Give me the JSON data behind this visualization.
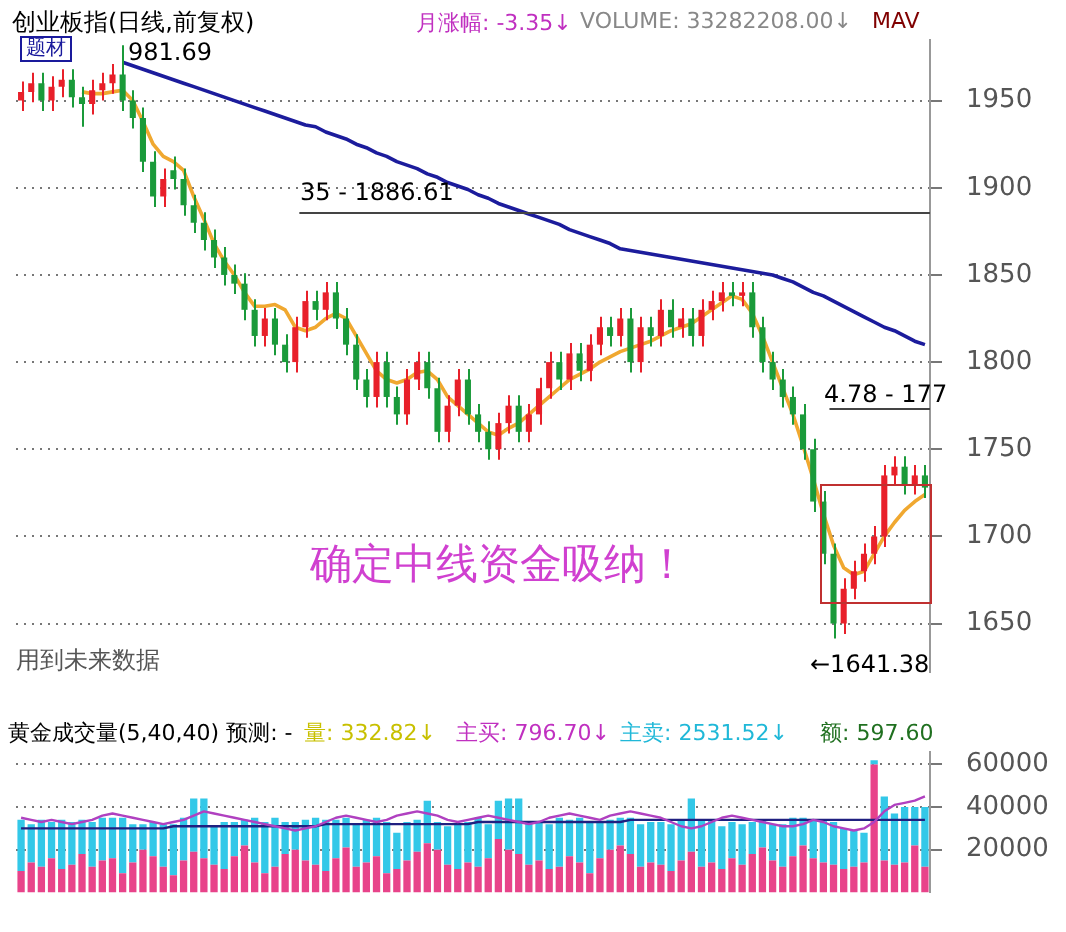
{
  "chart_data": [
    {
      "type": "candlestick",
      "title": "创业板指(日线,前复权)",
      "annotations": [
        "月涨幅: -3.35↓",
        "VOLUME: 33282208.00↓",
        "MAV",
        "题材",
        "981.69",
        "确定中线资金吸纳！",
        "用到未来数据",
        "←1641.38",
        "35 - 1886.61",
        "4.78 - 177"
      ],
      "categories": [
        null,
        null,
        null,
        null,
        null,
        null,
        null,
        null,
        null,
        null,
        null,
        null,
        null,
        null,
        null,
        null,
        null,
        null,
        null,
        null,
        null,
        null,
        null,
        null,
        null,
        null,
        null,
        null,
        null,
        null,
        null,
        null,
        null,
        null,
        null,
        null,
        null,
        null,
        null,
        null,
        null,
        null,
        null,
        null,
        null,
        null,
        null,
        null,
        null,
        null,
        null,
        null,
        null,
        null,
        null,
        null,
        null,
        null,
        null,
        null,
        null,
        null,
        null,
        null,
        null,
        null,
        null,
        null,
        null,
        null,
        null,
        null,
        null,
        null,
        null,
        null,
        null,
        null,
        null,
        null,
        null,
        null,
        null,
        null,
        null,
        null,
        null,
        null,
        null,
        null
      ],
      "ohlc": [
        [
          1950,
          1961,
          1944,
          1955
        ],
        [
          1955,
          1966,
          1949,
          1960
        ],
        [
          1960,
          1966,
          1944,
          1950
        ],
        [
          1950,
          1964,
          1944,
          1958
        ],
        [
          1958,
          1968,
          1952,
          1962
        ],
        [
          1962,
          1968,
          1946,
          1952
        ],
        [
          1952,
          1958,
          1935,
          1948
        ],
        [
          1948,
          1962,
          1942,
          1956
        ],
        [
          1956,
          1966,
          1950,
          1960
        ],
        [
          1960,
          1971,
          1954,
          1965
        ],
        [
          1965,
          1981.69,
          1944,
          1950
        ],
        [
          1950,
          1956,
          1934,
          1940
        ],
        [
          1940,
          1946,
          1909,
          1915
        ],
        [
          1915,
          1921,
          1889,
          1895
        ],
        [
          1895,
          1911,
          1889,
          1905
        ],
        [
          1910,
          1918,
          1899,
          1905
        ],
        [
          1905,
          1911,
          1884,
          1890
        ],
        [
          1890,
          1896,
          1874,
          1880
        ],
        [
          1880,
          1886,
          1864,
          1870
        ],
        [
          1870,
          1876,
          1854,
          1860
        ],
        [
          1860,
          1866,
          1844,
          1850
        ],
        [
          1850,
          1856,
          1839,
          1845
        ],
        [
          1845,
          1851,
          1824,
          1830
        ],
        [
          1830,
          1836,
          1809,
          1815
        ],
        [
          1815,
          1831,
          1809,
          1825
        ],
        [
          1825,
          1831,
          1804,
          1810
        ],
        [
          1810,
          1816,
          1794,
          1800
        ],
        [
          1800,
          1826,
          1794,
          1820
        ],
        [
          1820,
          1841,
          1814,
          1835
        ],
        [
          1835,
          1841,
          1824,
          1830
        ],
        [
          1830,
          1846,
          1824,
          1840
        ],
        [
          1840,
          1846,
          1819,
          1825
        ],
        [
          1825,
          1831,
          1804,
          1810
        ],
        [
          1810,
          1816,
          1784,
          1790
        ],
        [
          1790,
          1796,
          1774,
          1780
        ],
        [
          1780,
          1806,
          1774,
          1800
        ],
        [
          1800,
          1806,
          1774,
          1780
        ],
        [
          1780,
          1786,
          1764,
          1770
        ],
        [
          1770,
          1796,
          1764,
          1790
        ],
        [
          1790,
          1806,
          1784,
          1800
        ],
        [
          1800,
          1806,
          1779,
          1785
        ],
        [
          1785,
          1791,
          1754,
          1760
        ],
        [
          1760,
          1781,
          1754,
          1775
        ],
        [
          1775,
          1796,
          1769,
          1790
        ],
        [
          1790,
          1796,
          1764,
          1770
        ],
        [
          1770,
          1776,
          1754,
          1760
        ],
        [
          1760,
          1766,
          1744,
          1750
        ],
        [
          1750,
          1771,
          1744,
          1765
        ],
        [
          1765,
          1781,
          1759,
          1775
        ],
        [
          1775,
          1781,
          1754,
          1760
        ],
        [
          1760,
          1776,
          1754,
          1770
        ],
        [
          1770,
          1791,
          1764,
          1785
        ],
        [
          1785,
          1806,
          1779,
          1800
        ],
        [
          1800,
          1806,
          1784,
          1790
        ],
        [
          1790,
          1811,
          1784,
          1805
        ],
        [
          1805,
          1811,
          1789,
          1795
        ],
        [
          1795,
          1816,
          1789,
          1810
        ],
        [
          1810,
          1826,
          1804,
          1820
        ],
        [
          1820,
          1826,
          1809,
          1815
        ],
        [
          1815,
          1831,
          1809,
          1825
        ],
        [
          1825,
          1831,
          1794,
          1800
        ],
        [
          1800,
          1826,
          1794,
          1820
        ],
        [
          1820,
          1826,
          1809,
          1815
        ],
        [
          1815,
          1836,
          1809,
          1830
        ],
        [
          1830,
          1836,
          1814,
          1820
        ],
        [
          1820,
          1831,
          1814,
          1825
        ],
        [
          1825,
          1831,
          1809,
          1815
        ],
        [
          1815,
          1836,
          1809,
          1830
        ],
        [
          1830,
          1841,
          1824,
          1835
        ],
        [
          1835,
          1846,
          1829,
          1840
        ],
        [
          1840,
          1846,
          1832,
          1838
        ],
        [
          1838,
          1846,
          1832,
          1840
        ],
        [
          1840,
          1846,
          1814,
          1820
        ],
        [
          1820,
          1826,
          1794,
          1800
        ],
        [
          1800,
          1806,
          1784,
          1790
        ],
        [
          1790,
          1796,
          1774,
          1780
        ],
        [
          1780,
          1786,
          1764,
          1770
        ],
        [
          1770,
          1776,
          1744,
          1750
        ],
        [
          1750,
          1756,
          1714,
          1720
        ],
        [
          1720,
          1726,
          1684,
          1690
        ],
        [
          1690,
          1696,
          1641.38,
          1650
        ],
        [
          1650,
          1676,
          1644,
          1670
        ],
        [
          1670,
          1686,
          1664,
          1680
        ],
        [
          1680,
          1696,
          1674,
          1690
        ],
        [
          1690,
          1706,
          1684,
          1700
        ],
        [
          1700,
          1741,
          1694,
          1735
        ],
        [
          1735,
          1746,
          1729,
          1740
        ],
        [
          1740,
          1746,
          1724,
          1730
        ],
        [
          1730,
          1741,
          1724,
          1735
        ],
        [
          1735,
          1741,
          1722,
          1728
        ]
      ],
      "series": [
        {
          "type": "line",
          "color": "#1c1c9c",
          "values": [
            null,
            null,
            null,
            null,
            null,
            null,
            null,
            null,
            null,
            null,
            1972,
            1970,
            1968,
            1966,
            1964,
            1962,
            1960,
            1958,
            1956,
            1954,
            1952,
            1950,
            1948,
            1946,
            1944,
            1942,
            1940,
            1938,
            1936,
            1935,
            1932,
            1930,
            1928,
            1925,
            1923,
            1920,
            1918,
            1915,
            1913,
            1911,
            1908,
            1906,
            1903,
            1901,
            1899,
            1896,
            1894,
            1891,
            1889,
            1887,
            1885,
            1883,
            1881,
            1879,
            1876,
            1874,
            1872,
            1870,
            1868,
            1865,
            1864,
            1863,
            1862,
            1861,
            1860,
            1859,
            1858,
            1857,
            1856,
            1855,
            1854,
            1853,
            1852,
            1851,
            1850,
            1848,
            1846,
            1843,
            1840,
            1838,
            1835,
            1832,
            1829,
            1826,
            1823,
            1820,
            1818,
            1815,
            1812,
            1810
          ]
        },
        {
          "type": "line",
          "color": "#f0a830",
          "values": [
            null,
            null,
            null,
            null,
            null,
            null,
            1955,
            1954,
            1954,
            1955,
            1956,
            1950,
            1938,
            1925,
            1918,
            1915,
            1910,
            1895,
            1882,
            1868,
            1858,
            1850,
            1840,
            1832,
            1832,
            1833,
            1830,
            1820,
            1818,
            1820,
            1825,
            1828,
            1825,
            1815,
            1805,
            1795,
            1790,
            1788,
            1790,
            1794,
            1795,
            1790,
            1780,
            1775,
            1770,
            1765,
            1760,
            1758,
            1762,
            1765,
            1770,
            1775,
            1780,
            1785,
            1790,
            1793,
            1796,
            1800,
            1803,
            1806,
            1808,
            1810,
            1812,
            1815,
            1818,
            1820,
            1822,
            1826,
            1830,
            1834,
            1838,
            1836,
            1828,
            1815,
            1800,
            1785,
            1770,
            1752,
            1733,
            1713,
            1695,
            1682,
            1678,
            1680,
            1690,
            1700,
            1708,
            1715,
            1720,
            1724
          ]
        }
      ],
      "ylim": [
        1622,
        1985
      ],
      "yticks": [
        1650,
        1700,
        1750,
        1800,
        1850,
        1900,
        1950
      ],
      "ref_lines": [
        {
          "axis": "y",
          "value": 1886.61
        },
        {
          "axis": "y",
          "value": 1774
        }
      ],
      "grid": "y",
      "tick_labels": "y"
    },
    {
      "type": "bar",
      "title": "黄金成交量(5,40,40) 预测: -",
      "annotations": [
        "量: 332.82↓",
        "主买: 796.70↓",
        "主卖: 2531.52↓",
        "额: 597.60"
      ],
      "categories": [
        null,
        null,
        null,
        null,
        null,
        null,
        null,
        null,
        null,
        null,
        null,
        null,
        null,
        null,
        null,
        null,
        null,
        null,
        null,
        null,
        null,
        null,
        null,
        null,
        null,
        null,
        null,
        null,
        null,
        null,
        null,
        null,
        null,
        null,
        null,
        null,
        null,
        null,
        null,
        null,
        null,
        null,
        null,
        null,
        null,
        null,
        null,
        null,
        null,
        null,
        null,
        null,
        null,
        null,
        null,
        null,
        null,
        null,
        null,
        null,
        null,
        null,
        null,
        null,
        null,
        null,
        null,
        null,
        null,
        null,
        null,
        null,
        null,
        null,
        null,
        null,
        null,
        null,
        null,
        null,
        null,
        null,
        null,
        null,
        null,
        null,
        null,
        null,
        null,
        null
      ],
      "stacked": true,
      "series": [
        {
          "type": "bar",
          "color": "#e8438a",
          "values": [
            10000,
            14000,
            12000,
            16000,
            11000,
            13000,
            18000,
            12000,
            15000,
            16000,
            9000,
            14000,
            20000,
            17000,
            12000,
            8000,
            15000,
            19000,
            16000,
            13000,
            11000,
            17000,
            22000,
            14000,
            9000,
            12000,
            18000,
            20000,
            15000,
            13000,
            10000,
            16000,
            21000,
            12000,
            14000,
            17000,
            9000,
            11000,
            15000,
            19000,
            23000,
            20000,
            13000,
            11000,
            14000,
            12000,
            16000,
            25000,
            20000,
            18000,
            13000,
            15000,
            11000,
            12000,
            17000,
            14000,
            9000,
            16000,
            20000,
            22000,
            18000,
            12000,
            14000,
            13000,
            10000,
            15000,
            19000,
            12000,
            14000,
            11000,
            16000,
            13000,
            18000,
            21000,
            15000,
            12000,
            17000,
            22000,
            16000,
            14000,
            13000,
            11000,
            12000,
            14000,
            60000,
            15000,
            13000,
            14000,
            22000,
            12000
          ]
        },
        {
          "type": "bar",
          "color": "#33c8e8",
          "values": [
            24000,
            18000,
            22000,
            17000,
            23000,
            20000,
            16000,
            21000,
            20000,
            19000,
            26000,
            18000,
            12000,
            16000,
            20000,
            24000,
            20000,
            25000,
            28000,
            18000,
            22000,
            16000,
            12000,
            21000,
            24000,
            23000,
            15000,
            13000,
            19000,
            22000,
            24000,
            18000,
            14000,
            20000,
            20000,
            18000,
            24000,
            17000,
            18000,
            15000,
            20000,
            13000,
            18000,
            21000,
            19000,
            23000,
            16000,
            18000,
            24000,
            26000,
            20000,
            18000,
            21000,
            23000,
            17000,
            21000,
            24000,
            17000,
            14000,
            13000,
            17000,
            20000,
            19000,
            20000,
            22000,
            19000,
            25000,
            22000,
            20000,
            20000,
            17000,
            19000,
            15000,
            13000,
            17000,
            20000,
            18000,
            13000,
            18000,
            20000,
            20000,
            19000,
            17000,
            14000,
            2000,
            30000,
            24000,
            26000,
            18000,
            28000
          ]
        },
        {
          "type": "line",
          "color": "#b040c0",
          "values": [
            35000,
            34000,
            33000,
            34000,
            33000,
            32000,
            33000,
            34000,
            36000,
            37000,
            36000,
            35000,
            34000,
            33000,
            32000,
            33000,
            34000,
            36000,
            38000,
            37000,
            36000,
            35000,
            34000,
            33000,
            32000,
            31000,
            30000,
            29000,
            30000,
            31000,
            33000,
            35000,
            36000,
            35000,
            34000,
            33000,
            34000,
            36000,
            37000,
            38000,
            37000,
            36000,
            34000,
            33000,
            34000,
            35000,
            36000,
            35000,
            34000,
            33000,
            32000,
            33000,
            35000,
            36000,
            37000,
            36000,
            35000,
            34000,
            36000,
            37000,
            38000,
            37000,
            36000,
            35000,
            33000,
            31000,
            30000,
            31000,
            33000,
            35000,
            36000,
            35000,
            34000,
            33000,
            32000,
            31000,
            31000,
            32000,
            34000,
            33000,
            31000,
            30000,
            29000,
            30000,
            33000,
            38000,
            41000,
            42000,
            43000,
            45000
          ]
        },
        {
          "type": "line",
          "color": "#202080",
          "values": [
            30000,
            30000,
            30000,
            30000,
            30000,
            30000,
            30000,
            30000,
            30000,
            30000,
            30000,
            30000,
            30000,
            30000,
            30000,
            31000,
            31000,
            31000,
            31000,
            31000,
            31000,
            31000,
            31000,
            31000,
            31000,
            31000,
            31000,
            31000,
            31000,
            31000,
            32000,
            32000,
            32000,
            32000,
            32000,
            32000,
            32000,
            32000,
            32000,
            32000,
            32000,
            32000,
            32000,
            32000,
            32000,
            33000,
            33000,
            33000,
            33000,
            33000,
            33000,
            33000,
            33000,
            33000,
            33000,
            33000,
            33000,
            33000,
            33000,
            33000,
            34000,
            34000,
            34000,
            34000,
            34000,
            34000,
            34000,
            34000,
            34000,
            34000,
            34000,
            34000,
            34000,
            34000,
            34000,
            34000,
            34000,
            34000,
            34000,
            34000,
            34000,
            34000,
            34000,
            34000,
            34000,
            34000,
            34000,
            34000,
            34000,
            34000
          ]
        }
      ],
      "ylim": [
        0,
        66000
      ],
      "yticks": [
        20000,
        40000,
        60000
      ],
      "grid": "y",
      "tick_labels": "y"
    }
  ]
}
